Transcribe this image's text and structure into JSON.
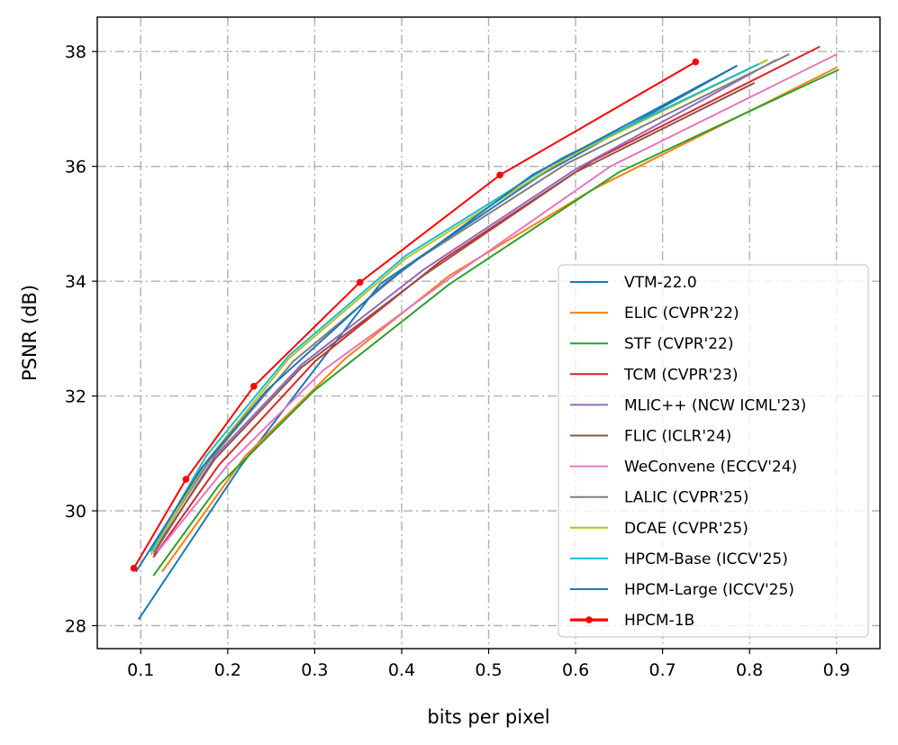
{
  "chart_data": {
    "type": "line",
    "title": "",
    "xlabel": "bits per pixel",
    "ylabel": "PSNR (dB)",
    "xlim": [
      0.05,
      0.95
    ],
    "ylim": [
      27.6,
      38.6
    ],
    "xticks": [
      0.1,
      0.2,
      0.3,
      0.4,
      0.5,
      0.6,
      0.7,
      0.8,
      0.9
    ],
    "xtick_labels": [
      "0.1",
      "0.2",
      "0.3",
      "0.4",
      "0.5",
      "0.6",
      "0.7",
      "0.8",
      "0.9"
    ],
    "yticks": [
      28,
      30,
      32,
      34,
      36,
      38
    ],
    "ytick_labels": [
      "28",
      "30",
      "32",
      "34",
      "36",
      "38"
    ],
    "grid": true,
    "legend_position": "lower-right",
    "series": [
      {
        "name": "VTM-22.0",
        "color": "#1f77b4",
        "x": [
          0.098,
          0.215,
          0.375,
          0.56,
          0.785
        ],
        "y": [
          28.12,
          30.78,
          33.95,
          35.85,
          37.75
        ],
        "markers": false,
        "bold": false
      },
      {
        "name": "ELIC (CVPR'22)",
        "color": "#ff7f0e",
        "x": [
          0.125,
          0.22,
          0.335,
          0.455,
          0.62,
          0.9
        ],
        "y": [
          28.95,
          30.95,
          32.65,
          34.1,
          35.6,
          37.72
        ],
        "markers": false,
        "bold": false
      },
      {
        "name": "STF (CVPR'22)",
        "color": "#2ca02c",
        "x": [
          0.115,
          0.19,
          0.3,
          0.455,
          0.65,
          0.902
        ],
        "y": [
          28.88,
          30.45,
          32.1,
          33.95,
          35.9,
          37.68
        ],
        "markers": false,
        "bold": false
      },
      {
        "name": "TCM (CVPR'23)",
        "color": "#d62728",
        "x": [
          0.115,
          0.19,
          0.3,
          0.445,
          0.62,
          0.88
        ],
        "y": [
          29.2,
          30.8,
          32.6,
          34.35,
          36.1,
          38.08
        ],
        "markers": false,
        "bold": false
      },
      {
        "name": "MLIC++ (NCW ICML'23)",
        "color": "#9467bd",
        "x": [
          0.115,
          0.185,
          0.285,
          0.425,
          0.6,
          0.83
        ],
        "y": [
          29.25,
          30.95,
          32.55,
          34.2,
          35.95,
          37.85
        ],
        "markers": false,
        "bold": false
      },
      {
        "name": "FLIC (ICLR'24)",
        "color": "#8c564b",
        "x": [
          0.115,
          0.185,
          0.285,
          0.425,
          0.6,
          0.805
        ],
        "y": [
          29.3,
          30.9,
          32.5,
          34.1,
          35.9,
          37.45
        ],
        "markers": false,
        "bold": false
      },
      {
        "name": "WeConvene (ECCV'24)",
        "color": "#e377c2",
        "x": [
          0.12,
          0.2,
          0.31,
          0.455,
          0.64,
          0.9
        ],
        "y": [
          29.3,
          30.8,
          32.45,
          34.05,
          36.0,
          37.95
        ],
        "markers": false,
        "bold": false
      },
      {
        "name": "LALIC (CVPR'25)",
        "color": "#7f7f7f",
        "x": [
          0.115,
          0.18,
          0.275,
          0.41,
          0.59,
          0.845
        ],
        "y": [
          29.35,
          30.9,
          32.6,
          34.3,
          36.05,
          37.95
        ],
        "markers": false,
        "bold": false
      },
      {
        "name": "DCAE (CVPR'25)",
        "color": "#bcbd22",
        "x": [
          0.112,
          0.175,
          0.27,
          0.405,
          0.59,
          0.82
        ],
        "y": [
          29.25,
          30.85,
          32.65,
          34.4,
          36.15,
          37.85
        ],
        "markers": false,
        "bold": false
      },
      {
        "name": "HPCM-Base (ICCV'25)",
        "color": "#17becf",
        "x": [
          0.112,
          0.175,
          0.27,
          0.405,
          0.585,
          0.81
        ],
        "y": [
          29.3,
          30.95,
          32.7,
          34.45,
          36.15,
          37.78
        ],
        "markers": false,
        "bold": false
      },
      {
        "name": "HPCM-Large (ICCV'25)",
        "color": "#1f77b4",
        "x": [
          0.095,
          0.17,
          0.245,
          0.38,
          0.55,
          0.785
        ],
        "y": [
          28.95,
          30.75,
          32.1,
          33.95,
          35.85,
          37.75
        ],
        "markers": false,
        "bold": false
      },
      {
        "name": "HPCM-1B",
        "color": "#ff0000",
        "x": [
          0.092,
          0.152,
          0.23,
          0.352,
          0.513,
          0.738
        ],
        "y": [
          29.0,
          30.55,
          32.17,
          33.98,
          35.85,
          37.82
        ],
        "markers": true,
        "bold": true
      }
    ]
  }
}
